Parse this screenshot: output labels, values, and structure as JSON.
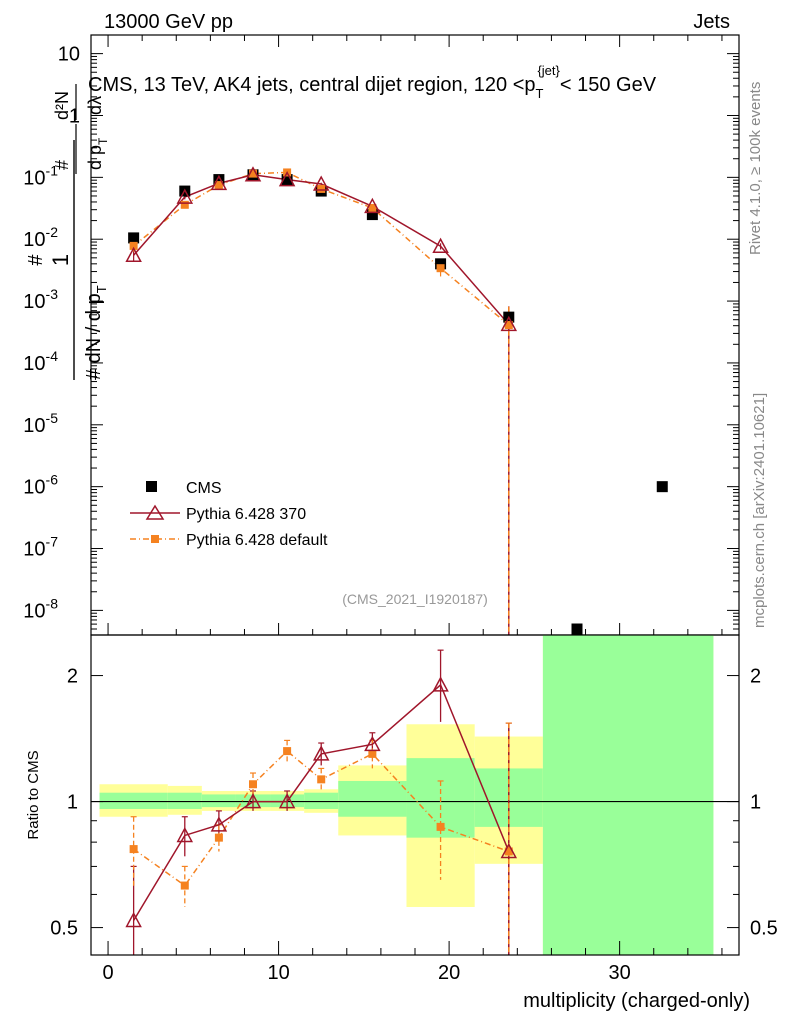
{
  "header": {
    "left": "13000 GeV pp",
    "right": "Jets"
  },
  "side_labels": {
    "rivet": "Rivet 4.1.0, ≥ 100k events",
    "mcplots": "mcplots.cern.ch [arXiv:2401.10621]"
  },
  "colors": {
    "data": "#000000",
    "p370": "#a0162b",
    "pdef": "#f58220",
    "band_inner": "#99ff99",
    "band_outer": "#ffff99"
  },
  "chart_data": [
    {
      "type": "scatter",
      "title": "CMS, 13 TeV, AK4 jets, central dijet region, 120 <p_T^{jet}< 150 GeV",
      "ylabel": "1/(dN/dp_T) d²N/(dp_T dλ)",
      "yscale": "log",
      "ylim": [
        4e-09,
        20
      ],
      "xlim": [
        -1,
        37
      ],
      "yticks": [
        {
          "v": 1e-08,
          "base": "10",
          "exp": "-8"
        },
        {
          "v": 1e-07,
          "base": "10",
          "exp": "-7"
        },
        {
          "v": 1e-06,
          "base": "10",
          "exp": "-6"
        },
        {
          "v": 1e-05,
          "base": "10",
          "exp": "-5"
        },
        {
          "v": 0.0001,
          "base": "10",
          "exp": "-4"
        },
        {
          "v": 0.001,
          "base": "10",
          "exp": "-3"
        },
        {
          "v": 0.01,
          "base": "10",
          "exp": "-2"
        },
        {
          "v": 0.1,
          "base": "10",
          "exp": "-1"
        },
        {
          "v": 1,
          "base": "1",
          "exp": ""
        },
        {
          "v": 10,
          "base": "10",
          "exp": ""
        }
      ],
      "watermark": "(CMS_2021_I1920187)",
      "legend": [
        "CMS",
        "Pythia 6.428 370",
        "Pythia 6.428 default"
      ],
      "series": [
        {
          "name": "CMS",
          "x": [
            1.5,
            4.5,
            6.5,
            8.5,
            10.5,
            12.5,
            15.5,
            19.5,
            23.5,
            27.5,
            32.5
          ],
          "y": [
            0.0105,
            0.06,
            0.092,
            0.11,
            0.092,
            0.06,
            0.025,
            0.004,
            0.00055,
            5e-09,
            1e-06
          ]
        },
        {
          "name": "Pythia 6.428 370",
          "x": [
            1.5,
            4.5,
            6.5,
            8.5,
            10.5,
            12.5,
            15.5,
            19.5,
            23.5
          ],
          "y": [
            0.0055,
            0.048,
            0.08,
            0.11,
            0.092,
            0.078,
            0.034,
            0.0077,
            0.00042
          ],
          "err": [
            0.0012,
            0.004,
            0.004,
            0.004,
            0.004,
            0.004,
            0.002,
            0.0009,
            0.0004
          ]
        },
        {
          "name": "Pythia 6.428 default",
          "x": [
            1.5,
            4.5,
            6.5,
            8.5,
            10.5,
            12.5,
            15.5,
            19.5,
            23.5
          ],
          "y": [
            0.0078,
            0.036,
            0.075,
            0.115,
            0.12,
            0.065,
            0.032,
            0.0034,
            0.00041
          ],
          "err": [
            0.0015,
            0.004,
            0.004,
            0.004,
            0.005,
            0.004,
            0.003,
            0.0009,
            0.0004
          ]
        }
      ]
    },
    {
      "type": "scatter",
      "ylabel": "Ratio to CMS",
      "xlabel": "multiplicity (charged-only)",
      "yscale": "log",
      "ylim": [
        0.43,
        2.5
      ],
      "xlim": [
        -1,
        37
      ],
      "yticks": [
        0.5,
        1,
        2
      ],
      "xticks": [
        0,
        10,
        20,
        30
      ],
      "bands": [
        {
          "x0": -0.5,
          "x1": 3.5,
          "inner": [
            0.96,
            1.05
          ],
          "outer": [
            0.92,
            1.1
          ]
        },
        {
          "x0": 3.5,
          "x1": 5.5,
          "inner": [
            0.96,
            1.05
          ],
          "outer": [
            0.93,
            1.09
          ]
        },
        {
          "x0": 5.5,
          "x1": 7.5,
          "inner": [
            0.97,
            1.04
          ],
          "outer": [
            0.95,
            1.06
          ]
        },
        {
          "x0": 7.5,
          "x1": 9.5,
          "inner": [
            0.97,
            1.04
          ],
          "outer": [
            0.95,
            1.06
          ]
        },
        {
          "x0": 9.5,
          "x1": 11.5,
          "inner": [
            0.97,
            1.04
          ],
          "outer": [
            0.95,
            1.06
          ]
        },
        {
          "x0": 11.5,
          "x1": 13.5,
          "inner": [
            0.96,
            1.05
          ],
          "outer": [
            0.94,
            1.07
          ]
        },
        {
          "x0": 13.5,
          "x1": 17.5,
          "inner": [
            0.92,
            1.12
          ],
          "outer": [
            0.83,
            1.22
          ]
        },
        {
          "x0": 17.5,
          "x1": 21.5,
          "inner": [
            0.82,
            1.27
          ],
          "outer": [
            0.56,
            1.53
          ]
        },
        {
          "x0": 21.5,
          "x1": 25.5,
          "inner": [
            0.87,
            1.2
          ],
          "outer": [
            0.71,
            1.43
          ]
        },
        {
          "x0": 25.5,
          "x1": 35.5,
          "inner": [
            0.43,
            2.5
          ],
          "outer": [
            0.43,
            2.5
          ]
        }
      ],
      "series": [
        {
          "name": "Pythia 6.428 370",
          "x": [
            1.5,
            4.5,
            6.5,
            8.5,
            10.5,
            12.5,
            15.5,
            19.5,
            23.5
          ],
          "y": [
            0.52,
            0.83,
            0.88,
            1.0,
            1.0,
            1.3,
            1.37,
            1.9,
            0.76
          ],
          "ylo": [
            0.35,
            0.74,
            0.82,
            0.95,
            0.95,
            1.22,
            1.28,
            1.55,
            0.43
          ],
          "yhi": [
            0.7,
            0.92,
            0.95,
            1.06,
            1.06,
            1.38,
            1.46,
            2.3,
            1.54
          ]
        },
        {
          "name": "Pythia 6.428 default",
          "x": [
            1.5,
            4.5,
            6.5,
            8.5,
            10.5,
            12.5,
            15.5,
            19.5,
            23.5
          ],
          "y": [
            0.77,
            0.63,
            0.82,
            1.1,
            1.32,
            1.13,
            1.3,
            0.87,
            0.76
          ],
          "ylo": [
            0.62,
            0.56,
            0.76,
            1.03,
            1.24,
            1.06,
            1.2,
            0.65,
            0.43
          ],
          "yhi": [
            0.92,
            0.7,
            0.88,
            1.17,
            1.4,
            1.2,
            1.4,
            1.12,
            1.54
          ]
        }
      ]
    }
  ]
}
